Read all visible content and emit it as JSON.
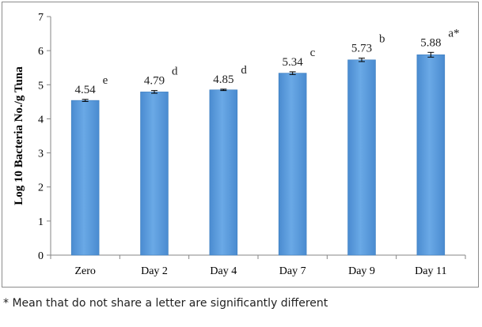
{
  "chart_data": {
    "type": "bar",
    "title": "",
    "xlabel": "",
    "ylabel": "Log 10 Bacteria No./g Tuna",
    "ylim": [
      0,
      7
    ],
    "yticks": [
      0,
      1,
      2,
      3,
      4,
      5,
      6,
      7
    ],
    "categories": [
      "Zero",
      "Day 2",
      "Day 4",
      "Day 7",
      "Day 9",
      "Day 11"
    ],
    "values": [
      4.54,
      4.79,
      4.85,
      5.34,
      5.73,
      5.88
    ],
    "value_labels": [
      "4.54",
      "4.79",
      "4.85",
      "5.34",
      "5.73",
      "5.88"
    ],
    "errors": [
      0.03,
      0.04,
      0.02,
      0.04,
      0.05,
      0.07
    ],
    "significance_letters": [
      "e",
      "d",
      "d",
      "c",
      "b",
      "a*"
    ],
    "bar_color": "#5b9bd5",
    "bar_color_dark": "#3f7fc0",
    "grid": false,
    "legend": "none"
  },
  "footnote": "* Mean that do not share a letter are significantly different"
}
